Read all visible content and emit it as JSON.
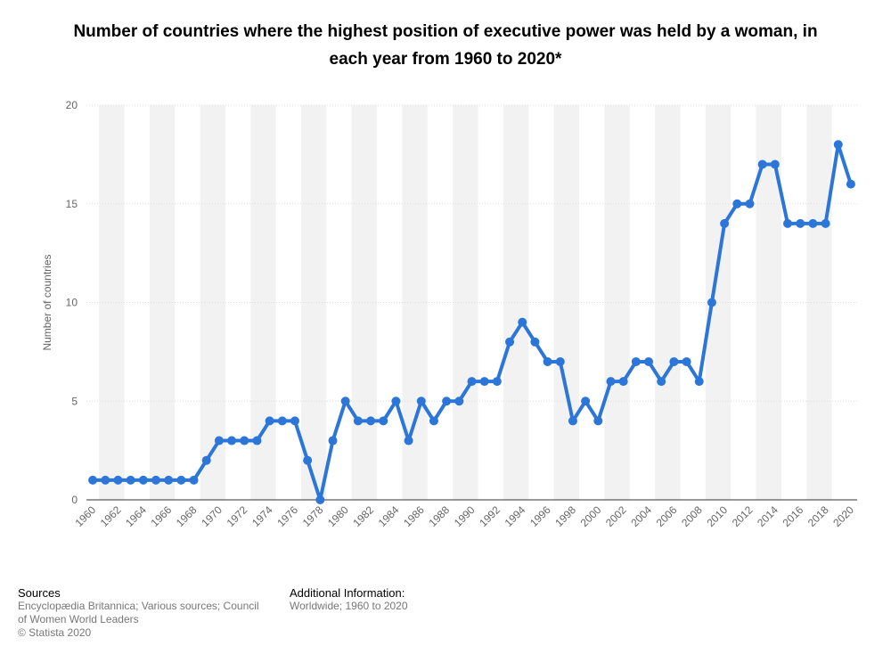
{
  "title": "Number of countries where the highest position of executive power was held by a woman, in each year from 1960 to 2020*",
  "colors": {
    "line": "#2d76d9",
    "band": "#f2f2f2",
    "grid": "#dddddd",
    "axis": "#333333"
  },
  "chart_data": {
    "type": "line",
    "title": "Number of countries where the highest position of executive power was held by a woman, in each year from 1960 to 2020*",
    "xlabel": "",
    "ylabel": "Number of countries",
    "ylim": [
      0,
      20
    ],
    "yticks": [
      0,
      5,
      10,
      15,
      20
    ],
    "grid": true,
    "legend": "none",
    "x": [
      1960,
      1961,
      1962,
      1963,
      1964,
      1965,
      1966,
      1967,
      1968,
      1969,
      1970,
      1971,
      1972,
      1973,
      1974,
      1975,
      1976,
      1977,
      1978,
      1979,
      1980,
      1981,
      1982,
      1983,
      1984,
      1985,
      1986,
      1987,
      1988,
      1989,
      1990,
      1991,
      1992,
      1993,
      1994,
      1995,
      1996,
      1997,
      1998,
      1999,
      2000,
      2001,
      2002,
      2003,
      2004,
      2005,
      2006,
      2007,
      2008,
      2009,
      2010,
      2011,
      2012,
      2013,
      2014,
      2015,
      2016,
      2017,
      2018,
      2019,
      2020
    ],
    "xtick_labels": [
      "1960",
      "1962",
      "1964",
      "1966",
      "1968",
      "1970",
      "1972",
      "1974",
      "1976",
      "1978",
      "1980",
      "1982",
      "1984",
      "1986",
      "1988",
      "1990",
      "1992",
      "1994",
      "1996",
      "1998",
      "2000",
      "2002",
      "2004",
      "2006",
      "2008",
      "2010",
      "2012",
      "2014",
      "2016",
      "2018",
      "2020"
    ],
    "series": [
      {
        "values": [
          1,
          1,
          1,
          1,
          1,
          1,
          1,
          1,
          1,
          2,
          3,
          3,
          3,
          3,
          4,
          4,
          4,
          2,
          0,
          3,
          5,
          4,
          4,
          4,
          5,
          3,
          5,
          4,
          5,
          5,
          6,
          6,
          6,
          8,
          9,
          8,
          7,
          7,
          4,
          5,
          4,
          6,
          6,
          7,
          7,
          6,
          7,
          7,
          6,
          10,
          14,
          15,
          15,
          17,
          17,
          14,
          14,
          14,
          14,
          18,
          16
        ]
      }
    ]
  },
  "footer": {
    "sources_heading": "Sources",
    "sources_line1": "Encyclopædia Britannica; Various sources; Council",
    "sources_line2": "of Women World Leaders",
    "copyright": "© Statista 2020",
    "additional_heading": "Additional Information:",
    "additional_text": "Worldwide; 1960 to 2020"
  }
}
